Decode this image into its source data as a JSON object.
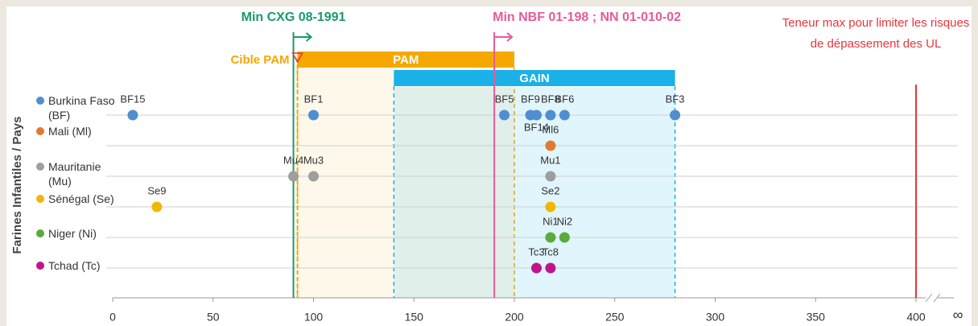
{
  "chart_data": {
    "type": "scatter",
    "y_axis_label": "Farines Infantiles / Pays",
    "xlim": [
      0,
      400
    ],
    "xticks": [
      0,
      50,
      100,
      150,
      200,
      250,
      300,
      350,
      400
    ],
    "infinity_label": "∞",
    "grid": true,
    "series": [
      {
        "name": "Burkina Faso (BF)",
        "color": "#4f8fd0",
        "values": [
          10,
          100,
          195,
          208,
          211,
          218,
          225,
          280
        ],
        "point_labels": [
          "BF15",
          "BF1",
          "BF5",
          "BF9",
          "BF14",
          "BF8",
          "BF6",
          "BF3"
        ]
      },
      {
        "name": "Mali (Ml)",
        "color": "#e07a32",
        "values": [
          218
        ],
        "point_labels": [
          "Ml6"
        ]
      },
      {
        "name": "Mauritanie (Mu)",
        "color": "#9e9e9e",
        "values": [
          90,
          100,
          218
        ],
        "point_labels": [
          "Mu4",
          "Mu3",
          "Mu1"
        ]
      },
      {
        "name": "Sénégal (Se)",
        "color": "#f2b705",
        "values": [
          22,
          218
        ],
        "point_labels": [
          "Se9",
          "Se2"
        ]
      },
      {
        "name": "Niger (Ni)",
        "color": "#5aaa3c",
        "values": [
          218,
          225
        ],
        "point_labels": [
          "Ni1",
          "Ni2"
        ]
      },
      {
        "name": "Tchad (Tc)",
        "color": "#c0158a",
        "values": [
          211,
          218
        ],
        "point_labels": [
          "Tc3",
          "Tc8"
        ]
      }
    ],
    "ranges": [
      {
        "label": "PAM",
        "start": 92,
        "end": 200,
        "color": "#f5a800"
      },
      {
        "label": "GAIN",
        "start": 140,
        "end": 280,
        "color": "#1ab0e8"
      }
    ],
    "reference_lines": [
      {
        "label": "Min CXG 08-1991",
        "x": 90,
        "color": "#1a9a6b"
      },
      {
        "label": "Cible PAM",
        "x": 92,
        "color": "#f5a800"
      },
      {
        "label": "Min NBF 01-198 ; NN 01-010-02",
        "x": 190,
        "color": "#e85a9a"
      },
      {
        "label": "Teneur max pour limiter les risques de dépassement des UL",
        "x": 400,
        "color": "#e8343a"
      }
    ]
  }
}
